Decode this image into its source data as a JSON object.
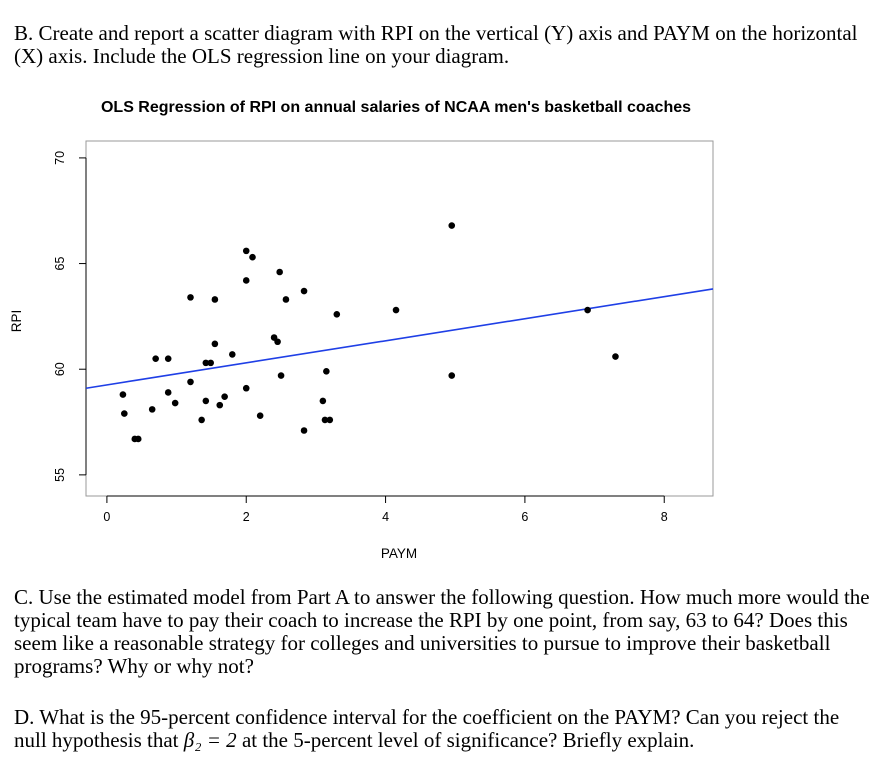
{
  "questions": {
    "b": "B. Create and report a scatter diagram with RPI on the vertical (Y) axis and PAYM on the horizontal (X) axis.  Include the OLS regression line on your diagram.",
    "c": "C. Use the estimated model from Part A to answer the following question.  How much more would the typical team have to pay their coach to increase the RPI by one point, from say, 63 to 64? Does this seem like a reasonable strategy for colleges and universities to pursue to improve their basketball programs? Why or why not?",
    "d_before": "D. What is the 95-percent confidence interval for the coefficient on the PAYM?  Can you reject the null hypothesis that ",
    "d_math": "β₂ = 2",
    "d_after": " at the 5-percent level of significance?  Briefly explain."
  },
  "chart_data": {
    "type": "scatter",
    "title": "OLS Regression of RPI on annual salaries of NCAA men's basketball coaches",
    "xlabel": "PAYM",
    "ylabel": "RPI",
    "xlim": [
      -0.3,
      8.7
    ],
    "ylim": [
      54.0,
      70.8
    ],
    "xticks": [
      0,
      2,
      4,
      6,
      8
    ],
    "yticks": [
      55,
      60,
      65,
      70
    ],
    "grid": false,
    "legend": "none",
    "point_color": "#000000",
    "line_color": "#1f3fe6",
    "regression_line": {
      "x": [
        -0.3,
        8.7
      ],
      "y": [
        59.1,
        63.8
      ]
    },
    "points": [
      {
        "x": 0.23,
        "y": 58.8
      },
      {
        "x": 0.25,
        "y": 57.9
      },
      {
        "x": 0.4,
        "y": 56.7
      },
      {
        "x": 0.45,
        "y": 56.7
      },
      {
        "x": 0.65,
        "y": 58.1
      },
      {
        "x": 0.7,
        "y": 60.5
      },
      {
        "x": 0.88,
        "y": 60.5
      },
      {
        "x": 0.88,
        "y": 58.9
      },
      {
        "x": 0.98,
        "y": 58.4
      },
      {
        "x": 1.2,
        "y": 59.4
      },
      {
        "x": 1.2,
        "y": 63.4
      },
      {
        "x": 1.36,
        "y": 57.6
      },
      {
        "x": 1.42,
        "y": 60.3
      },
      {
        "x": 1.42,
        "y": 58.5
      },
      {
        "x": 1.49,
        "y": 60.3
      },
      {
        "x": 1.55,
        "y": 61.2
      },
      {
        "x": 1.55,
        "y": 63.3
      },
      {
        "x": 1.62,
        "y": 58.3
      },
      {
        "x": 1.69,
        "y": 58.7
      },
      {
        "x": 1.8,
        "y": 60.7
      },
      {
        "x": 2.0,
        "y": 65.6
      },
      {
        "x": 2.0,
        "y": 64.2
      },
      {
        "x": 2.0,
        "y": 59.1
      },
      {
        "x": 2.09,
        "y": 65.3
      },
      {
        "x": 2.2,
        "y": 57.8
      },
      {
        "x": 2.4,
        "y": 61.5
      },
      {
        "x": 2.45,
        "y": 61.3
      },
      {
        "x": 2.48,
        "y": 64.6
      },
      {
        "x": 2.5,
        "y": 59.7
      },
      {
        "x": 2.57,
        "y": 63.3
      },
      {
        "x": 2.83,
        "y": 63.7
      },
      {
        "x": 2.83,
        "y": 57.1
      },
      {
        "x": 3.1,
        "y": 58.5
      },
      {
        "x": 3.13,
        "y": 57.6
      },
      {
        "x": 3.15,
        "y": 59.9
      },
      {
        "x": 3.2,
        "y": 57.6
      },
      {
        "x": 3.3,
        "y": 62.6
      },
      {
        "x": 4.15,
        "y": 62.8
      },
      {
        "x": 4.95,
        "y": 66.8
      },
      {
        "x": 4.95,
        "y": 59.7
      },
      {
        "x": 6.9,
        "y": 62.8
      },
      {
        "x": 7.3,
        "y": 60.6
      }
    ]
  }
}
